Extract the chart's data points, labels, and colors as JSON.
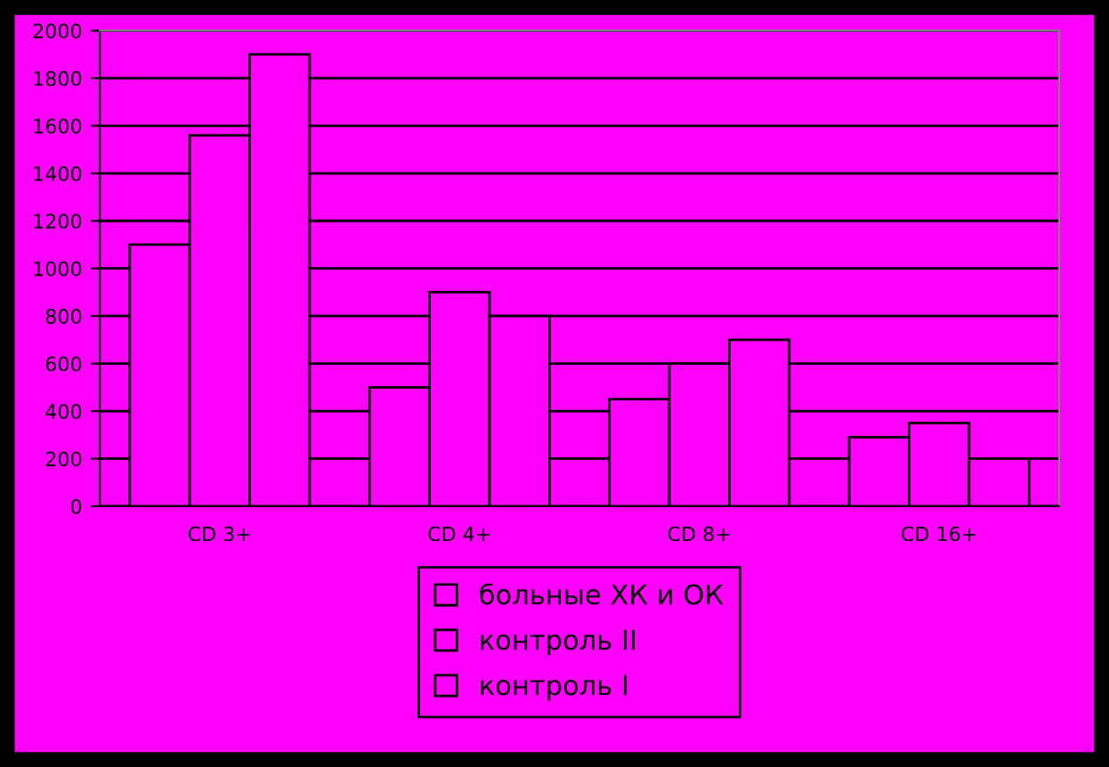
{
  "chart_data": {
    "type": "bar",
    "categories": [
      "CD 3+",
      "CD 4+",
      "CD 8+",
      "CD 16+"
    ],
    "series": [
      {
        "name": "больные ХК и ОК",
        "color": "#ff00ff",
        "values": [
          1100,
          500,
          450,
          290
        ]
      },
      {
        "name": "контроль II",
        "color": "#ff00ff",
        "values": [
          1560,
          900,
          600,
          350
        ]
      },
      {
        "name": "контроль I",
        "color": "#ff00ff",
        "values": [
          1900,
          800,
          700,
          200
        ]
      }
    ],
    "ylim": [
      0,
      2000
    ],
    "yticks": [
      0,
      200,
      400,
      600,
      800,
      1000,
      1200,
      1400,
      1600,
      1800,
      2000
    ],
    "grid": "y",
    "legend": "bottom"
  }
}
